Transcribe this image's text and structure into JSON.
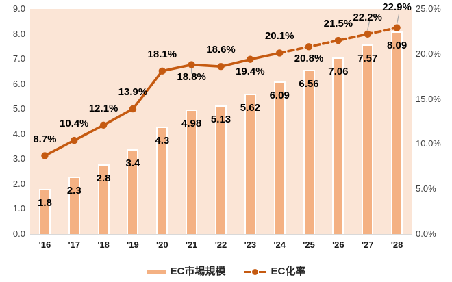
{
  "chart_data": {
    "type": "combo-bar-line",
    "categories": [
      "'16",
      "'17",
      "'18",
      "'19",
      "'20",
      "'21",
      "'22",
      "'23",
      "'24",
      "'25",
      "'26",
      "'27",
      "'28"
    ],
    "series": [
      {
        "name": "EC市場規模",
        "type": "bar",
        "axis": "left",
        "values": [
          1.8,
          2.3,
          2.8,
          3.4,
          4.3,
          4.98,
          5.13,
          5.62,
          6.09,
          6.56,
          7.06,
          7.57,
          8.09
        ],
        "labels": [
          "1.8",
          "2.3",
          "2.8",
          "3.4",
          "4.3",
          "4.98",
          "5.13",
          "5.62",
          "6.09",
          "6.56",
          "7.06",
          "7.57",
          "8.09"
        ],
        "fill": "#F4B183",
        "border": "#FFFFFF"
      },
      {
        "name": "EC化率",
        "type": "line",
        "axis": "right",
        "values": [
          8.7,
          10.4,
          12.1,
          13.9,
          18.1,
          18.8,
          18.6,
          19.4,
          20.1,
          20.8,
          21.5,
          22.2,
          22.9
        ],
        "labels": [
          "8.7%",
          "10.4%",
          "12.1%",
          "13.9%",
          "18.1%",
          "18.8%",
          "18.6%",
          "19.4%",
          "20.1%",
          "20.8%",
          "21.5%",
          "22.2%",
          "22.9%"
        ],
        "label_positions": [
          "above",
          "above",
          "above",
          "above",
          "above",
          "below",
          "above",
          "below",
          "above",
          "below",
          "above",
          "above",
          "above-far"
        ],
        "leader_line_indices": [
          5,
          11,
          12
        ],
        "solid_until_index": 8,
        "color": "#C55A11"
      }
    ],
    "left_axis": {
      "min": 0,
      "max": 9,
      "tick_step": 1,
      "tick_labels": [
        "0.0",
        "1.0",
        "2.0",
        "3.0",
        "4.0",
        "5.0",
        "6.0",
        "7.0",
        "8.0",
        "9.0"
      ]
    },
    "right_axis": {
      "min": 0,
      "max": 25,
      "tick_step": 5,
      "tick_labels": [
        "0.0%",
        "5.0%",
        "10.0%",
        "15.0%",
        "20.0%",
        "25.0%"
      ]
    },
    "grid": false,
    "colors": {
      "plot_bg": "#FBE5D6",
      "axis_line": "#D9D9D9",
      "data_label": "#000000",
      "tick_label": "#404040",
      "leader_line": "#A6A6A6"
    },
    "legend": {
      "position": "bottom",
      "items": [
        {
          "label": "EC市場規模",
          "swatch": "bar"
        },
        {
          "label": "EC化率",
          "swatch": "line"
        }
      ]
    }
  }
}
